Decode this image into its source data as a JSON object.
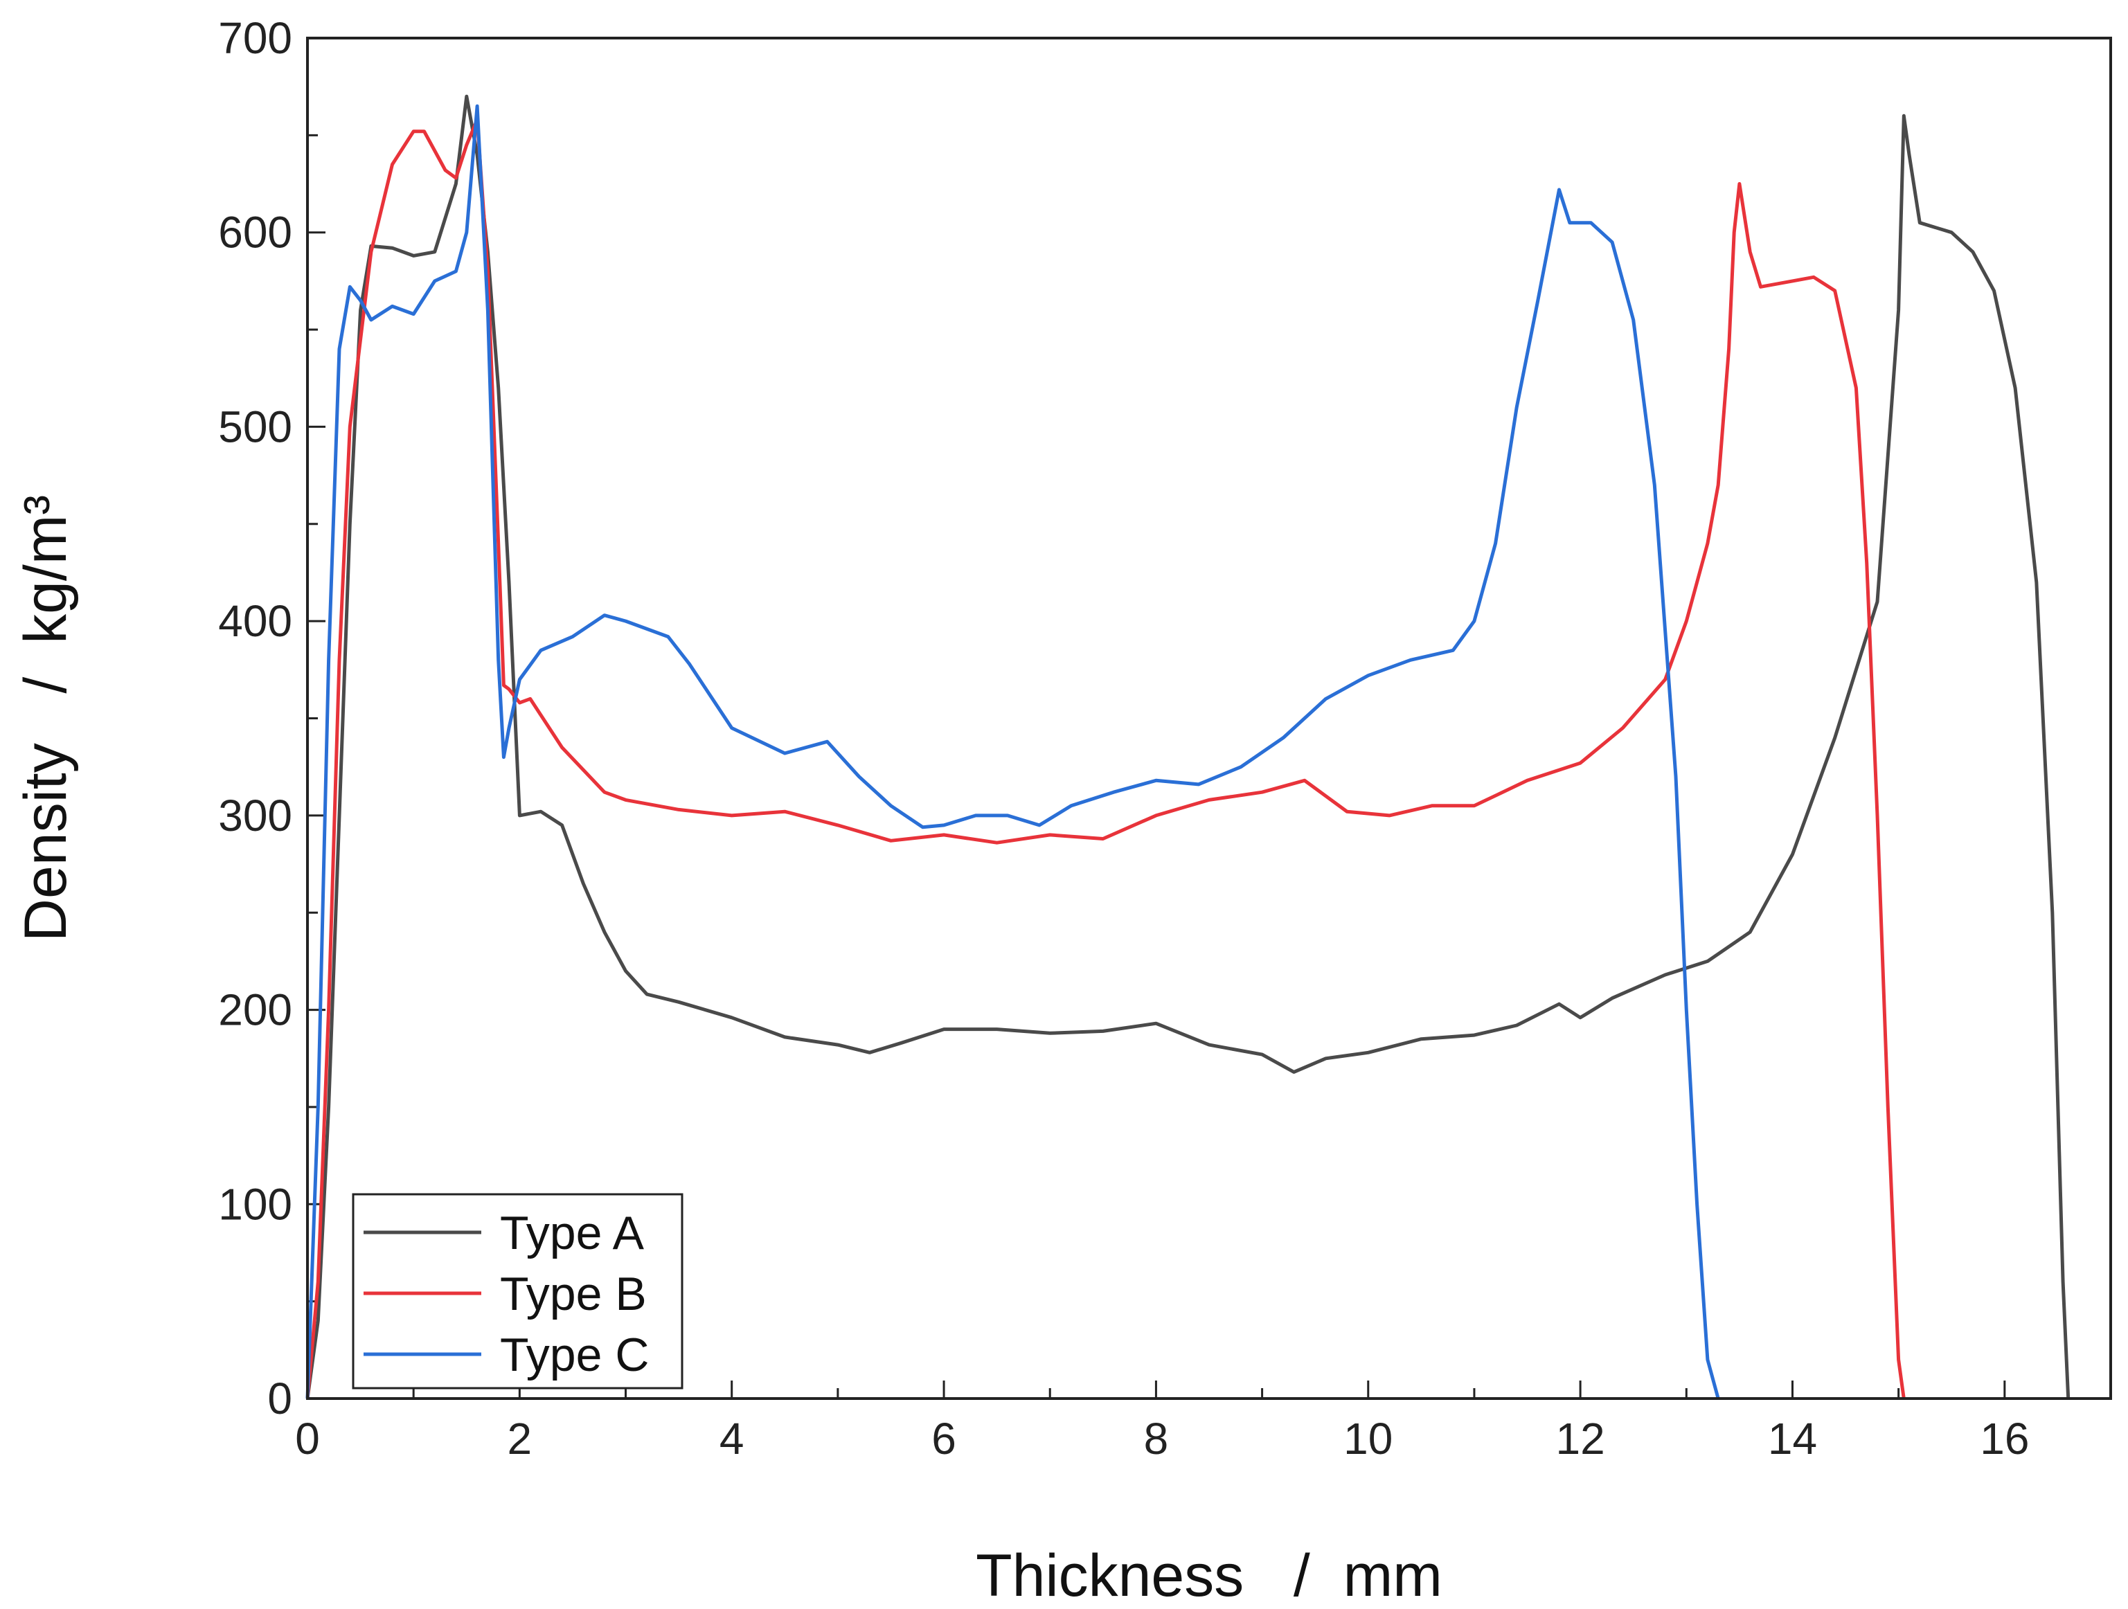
{
  "chart_data": {
    "type": "line",
    "title": "",
    "xlabel": "Thickness   /  mm",
    "ylabel": "Density   /  kg/m³",
    "xlim": [
      0,
      17
    ],
    "ylim": [
      0,
      700
    ],
    "xticks": [
      0,
      2,
      4,
      6,
      8,
      10,
      12,
      14,
      16
    ],
    "yticks": [
      0,
      100,
      200,
      300,
      400,
      500,
      600,
      700
    ],
    "grid": false,
    "legend_position": "bottom-left",
    "series": [
      {
        "name": "Type A",
        "color": "#4a4a4a",
        "points": [
          [
            0,
            0
          ],
          [
            0.1,
            40
          ],
          [
            0.2,
            150
          ],
          [
            0.3,
            300
          ],
          [
            0.4,
            450
          ],
          [
            0.5,
            560
          ],
          [
            0.6,
            593
          ],
          [
            0.8,
            592
          ],
          [
            1.0,
            588
          ],
          [
            1.2,
            590
          ],
          [
            1.4,
            625
          ],
          [
            1.5,
            670
          ],
          [
            1.6,
            640
          ],
          [
            1.7,
            590
          ],
          [
            1.8,
            520
          ],
          [
            1.9,
            420
          ],
          [
            2.0,
            300
          ],
          [
            2.2,
            302
          ],
          [
            2.4,
            295
          ],
          [
            2.6,
            265
          ],
          [
            2.8,
            240
          ],
          [
            3.0,
            220
          ],
          [
            3.2,
            208
          ],
          [
            3.5,
            204
          ],
          [
            4.0,
            196
          ],
          [
            4.5,
            186
          ],
          [
            5.0,
            182
          ],
          [
            5.3,
            178
          ],
          [
            5.6,
            183
          ],
          [
            6.0,
            190
          ],
          [
            6.5,
            190
          ],
          [
            7.0,
            188
          ],
          [
            7.5,
            189
          ],
          [
            8.0,
            193
          ],
          [
            8.5,
            182
          ],
          [
            9.0,
            177
          ],
          [
            9.3,
            168
          ],
          [
            9.6,
            175
          ],
          [
            10.0,
            178
          ],
          [
            10.5,
            185
          ],
          [
            11.0,
            187
          ],
          [
            11.4,
            192
          ],
          [
            11.8,
            203
          ],
          [
            12.0,
            196
          ],
          [
            12.3,
            206
          ],
          [
            12.8,
            218
          ],
          [
            13.2,
            225
          ],
          [
            13.6,
            240
          ],
          [
            14.0,
            280
          ],
          [
            14.4,
            340
          ],
          [
            14.8,
            410
          ],
          [
            15.0,
            560
          ],
          [
            15.05,
            660
          ],
          [
            15.1,
            640
          ],
          [
            15.2,
            605
          ],
          [
            15.5,
            600
          ],
          [
            15.7,
            590
          ],
          [
            15.9,
            570
          ],
          [
            16.1,
            520
          ],
          [
            16.3,
            420
          ],
          [
            16.45,
            250
          ],
          [
            16.55,
            60
          ],
          [
            16.6,
            0
          ]
        ]
      },
      {
        "name": "Type B",
        "color": "#e8333a",
        "points": [
          [
            0,
            0
          ],
          [
            0.1,
            60
          ],
          [
            0.2,
            200
          ],
          [
            0.3,
            380
          ],
          [
            0.4,
            500
          ],
          [
            0.6,
            590
          ],
          [
            0.8,
            635
          ],
          [
            1.0,
            652
          ],
          [
            1.1,
            652
          ],
          [
            1.3,
            632
          ],
          [
            1.4,
            628
          ],
          [
            1.5,
            645
          ],
          [
            1.6,
            658
          ],
          [
            1.7,
            580
          ],
          [
            1.8,
            440
          ],
          [
            1.85,
            367
          ],
          [
            1.9,
            365
          ],
          [
            2.0,
            358
          ],
          [
            2.1,
            360
          ],
          [
            2.4,
            335
          ],
          [
            2.8,
            312
          ],
          [
            3.0,
            308
          ],
          [
            3.5,
            303
          ],
          [
            4.0,
            300
          ],
          [
            4.5,
            302
          ],
          [
            5.0,
            295
          ],
          [
            5.5,
            287
          ],
          [
            6.0,
            290
          ],
          [
            6.5,
            286
          ],
          [
            7.0,
            290
          ],
          [
            7.5,
            288
          ],
          [
            8.0,
            300
          ],
          [
            8.5,
            308
          ],
          [
            9.0,
            312
          ],
          [
            9.4,
            318
          ],
          [
            9.8,
            302
          ],
          [
            10.2,
            300
          ],
          [
            10.6,
            305
          ],
          [
            11.0,
            305
          ],
          [
            11.5,
            318
          ],
          [
            12.0,
            327
          ],
          [
            12.4,
            345
          ],
          [
            12.8,
            370
          ],
          [
            13.0,
            400
          ],
          [
            13.2,
            440
          ],
          [
            13.3,
            470
          ],
          [
            13.4,
            540
          ],
          [
            13.45,
            600
          ],
          [
            13.5,
            625
          ],
          [
            13.6,
            590
          ],
          [
            13.7,
            572
          ],
          [
            14.0,
            575
          ],
          [
            14.2,
            577
          ],
          [
            14.4,
            570
          ],
          [
            14.6,
            520
          ],
          [
            14.7,
            430
          ],
          [
            14.8,
            300
          ],
          [
            14.9,
            150
          ],
          [
            15.0,
            20
          ],
          [
            15.05,
            0
          ]
        ]
      },
      {
        "name": "Type C",
        "color": "#2a6fd6",
        "points": [
          [
            0,
            0
          ],
          [
            0.1,
            150
          ],
          [
            0.2,
            380
          ],
          [
            0.3,
            540
          ],
          [
            0.4,
            572
          ],
          [
            0.5,
            565
          ],
          [
            0.6,
            555
          ],
          [
            0.8,
            562
          ],
          [
            1.0,
            558
          ],
          [
            1.2,
            575
          ],
          [
            1.4,
            580
          ],
          [
            1.5,
            600
          ],
          [
            1.6,
            665
          ],
          [
            1.7,
            560
          ],
          [
            1.8,
            380
          ],
          [
            1.85,
            330
          ],
          [
            1.9,
            345
          ],
          [
            2.0,
            370
          ],
          [
            2.2,
            385
          ],
          [
            2.5,
            392
          ],
          [
            2.8,
            403
          ],
          [
            3.0,
            400
          ],
          [
            3.4,
            392
          ],
          [
            3.6,
            378
          ],
          [
            4.0,
            345
          ],
          [
            4.5,
            332
          ],
          [
            4.9,
            338
          ],
          [
            5.2,
            320
          ],
          [
            5.5,
            305
          ],
          [
            5.8,
            294
          ],
          [
            6.0,
            295
          ],
          [
            6.3,
            300
          ],
          [
            6.6,
            300
          ],
          [
            6.9,
            295
          ],
          [
            7.2,
            305
          ],
          [
            7.6,
            312
          ],
          [
            8.0,
            318
          ],
          [
            8.4,
            316
          ],
          [
            8.8,
            325
          ],
          [
            9.2,
            340
          ],
          [
            9.6,
            360
          ],
          [
            10.0,
            372
          ],
          [
            10.4,
            380
          ],
          [
            10.8,
            385
          ],
          [
            11.0,
            400
          ],
          [
            11.2,
            440
          ],
          [
            11.4,
            510
          ],
          [
            11.6,
            565
          ],
          [
            11.8,
            622
          ],
          [
            11.9,
            605
          ],
          [
            12.1,
            605
          ],
          [
            12.3,
            595
          ],
          [
            12.5,
            555
          ],
          [
            12.7,
            470
          ],
          [
            12.9,
            320
          ],
          [
            13.0,
            200
          ],
          [
            13.1,
            100
          ],
          [
            13.2,
            20
          ],
          [
            13.3,
            0
          ]
        ]
      }
    ]
  },
  "legend": {
    "entries": [
      "Type A",
      "Type B",
      "Type C"
    ]
  }
}
